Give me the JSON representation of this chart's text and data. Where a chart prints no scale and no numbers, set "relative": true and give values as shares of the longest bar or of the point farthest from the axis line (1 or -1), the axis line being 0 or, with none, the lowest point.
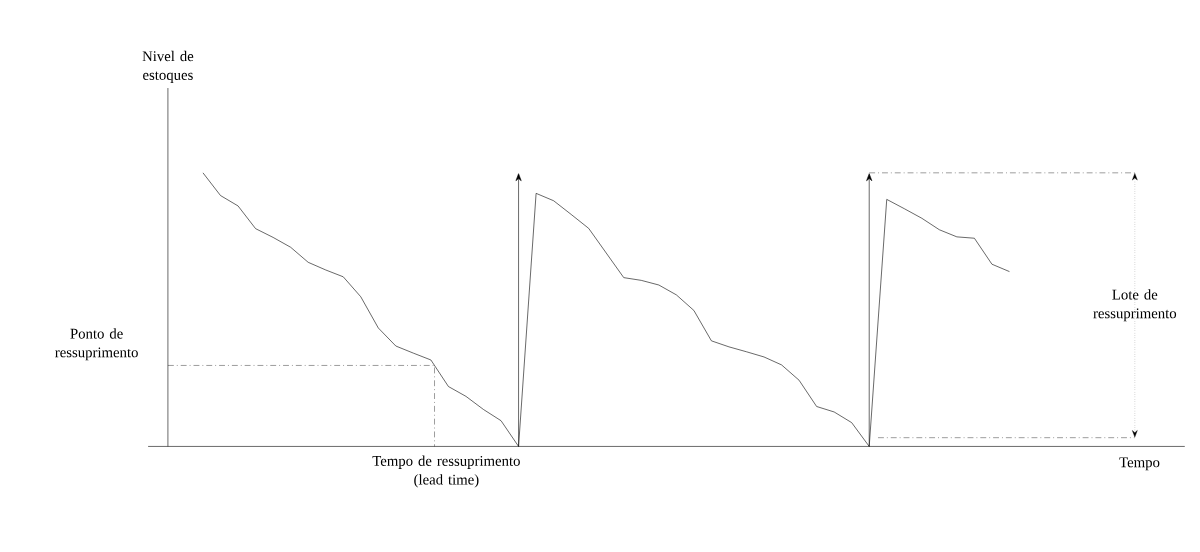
{
  "chart_data": {
    "type": "line",
    "relative": true,
    "categories": [
      null,
      null,
      null,
      null,
      null,
      null,
      null,
      null,
      null,
      null,
      null,
      null,
      null,
      null,
      null,
      null,
      null,
      null,
      null,
      null,
      null,
      null,
      null,
      null,
      null,
      null,
      null,
      null,
      null,
      null,
      null,
      null,
      null,
      null,
      null,
      null,
      null,
      null,
      null,
      null,
      null,
      null,
      null,
      null,
      null,
      null,
      null
    ],
    "series": [
      {
        "color": "#000000",
        "values": [
          1,
          0.917,
          0.879,
          0.796,
          0.764,
          0.728,
          0.673,
          0.645,
          0.62,
          0.547,
          0.433,
          0.367,
          0.341,
          0.316,
          0.219,
          0.183,
          0.135,
          0.094,
          0,
          0.925,
          0.898,
          0.848,
          0.797,
          0.707,
          0.617,
          0.607,
          0.59,
          0.554,
          0.497,
          0.386,
          0.364,
          0.346,
          0.327,
          0.298,
          0.242,
          0.146,
          0.126,
          0.087,
          0,
          0.903,
          0.869,
          0.834,
          0.792,
          0.766,
          0.761,
          0.666,
          0.639
        ]
      }
    ],
    "ref_lines": [
      {
        "axis": "y",
        "value": 0.296,
        "label": "Ponto de ressuprimento",
        "line_style": "dashed"
      },
      {
        "axis": "y",
        "value": 1,
        "line_style": "dashed"
      },
      {
        "axis": "y",
        "value": 0.032,
        "line_style": "dashed"
      }
    ],
    "annotations": [
      "Tempo de ressuprimento (lead time)",
      "Lote de ressuprimento",
      "Nivel de estoques",
      "Tempo"
    ]
  }
}
